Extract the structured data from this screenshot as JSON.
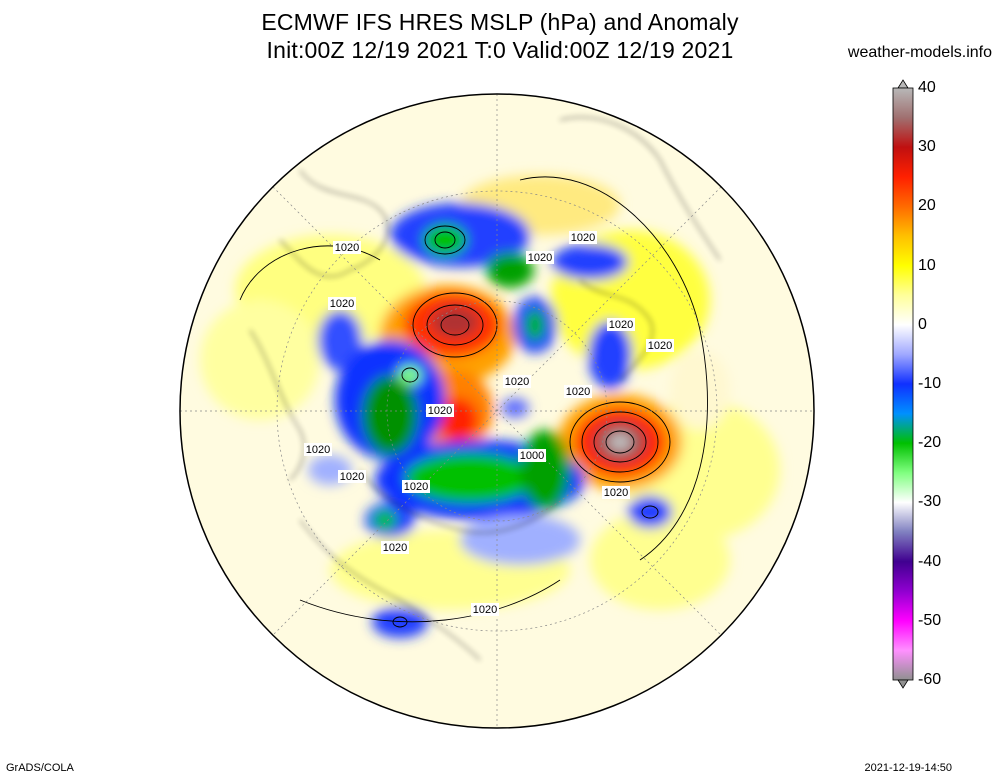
{
  "title": {
    "line1": "ECMWF IFS HRES MSLP (hPa) and Anomaly",
    "line2": "Init:00Z 12/19 2021 T:0 Valid:00Z 12/19 2021"
  },
  "site": "weather-models.info",
  "colorbar": {
    "labels": [
      "40",
      "30",
      "20",
      "10",
      "0",
      "-10",
      "-20",
      "-30",
      "-40",
      "-50",
      "-60"
    ],
    "range": [
      -60,
      40
    ],
    "stops": [
      {
        "value": 40,
        "color": "#b8b8b8"
      },
      {
        "value": 35,
        "color": "#a07070"
      },
      {
        "value": 30,
        "color": "#c01010"
      },
      {
        "value": 25,
        "color": "#ff2000"
      },
      {
        "value": 20,
        "color": "#ff6a00"
      },
      {
        "value": 15,
        "color": "#ffc000"
      },
      {
        "value": 10,
        "color": "#ffff00"
      },
      {
        "value": 5,
        "color": "#ffff9a"
      },
      {
        "value": 0,
        "color": "#ffffff"
      },
      {
        "value": -5,
        "color": "#a0a8ff"
      },
      {
        "value": -10,
        "color": "#1030ff"
      },
      {
        "value": -15,
        "color": "#0090ff"
      },
      {
        "value": -20,
        "color": "#00c000"
      },
      {
        "value": -25,
        "color": "#80ff80"
      },
      {
        "value": -30,
        "color": "#ffffff"
      },
      {
        "value": -35,
        "color": "#8080c0"
      },
      {
        "value": -40,
        "color": "#400090"
      },
      {
        "value": -45,
        "color": "#9000d0"
      },
      {
        "value": -50,
        "color": "#ff00ff"
      },
      {
        "value": -55,
        "color": "#ff90ff"
      },
      {
        "value": -60,
        "color": "#909090"
      }
    ]
  },
  "contour_labels": [
    {
      "text": "1020"
    },
    {
      "text": "1020"
    },
    {
      "text": "1020"
    },
    {
      "text": "1020"
    },
    {
      "text": "1020"
    },
    {
      "text": "1020"
    },
    {
      "text": "1020"
    },
    {
      "text": "1020"
    },
    {
      "text": "1000"
    },
    {
      "text": "1020"
    },
    {
      "text": "1020"
    },
    {
      "text": "1020"
    },
    {
      "text": "1020"
    },
    {
      "text": "1020"
    },
    {
      "text": "1020"
    },
    {
      "text": "1020"
    }
  ],
  "footer": {
    "credit": "GrADS/COLA",
    "timestamp": "2021-12-19-14:50"
  }
}
